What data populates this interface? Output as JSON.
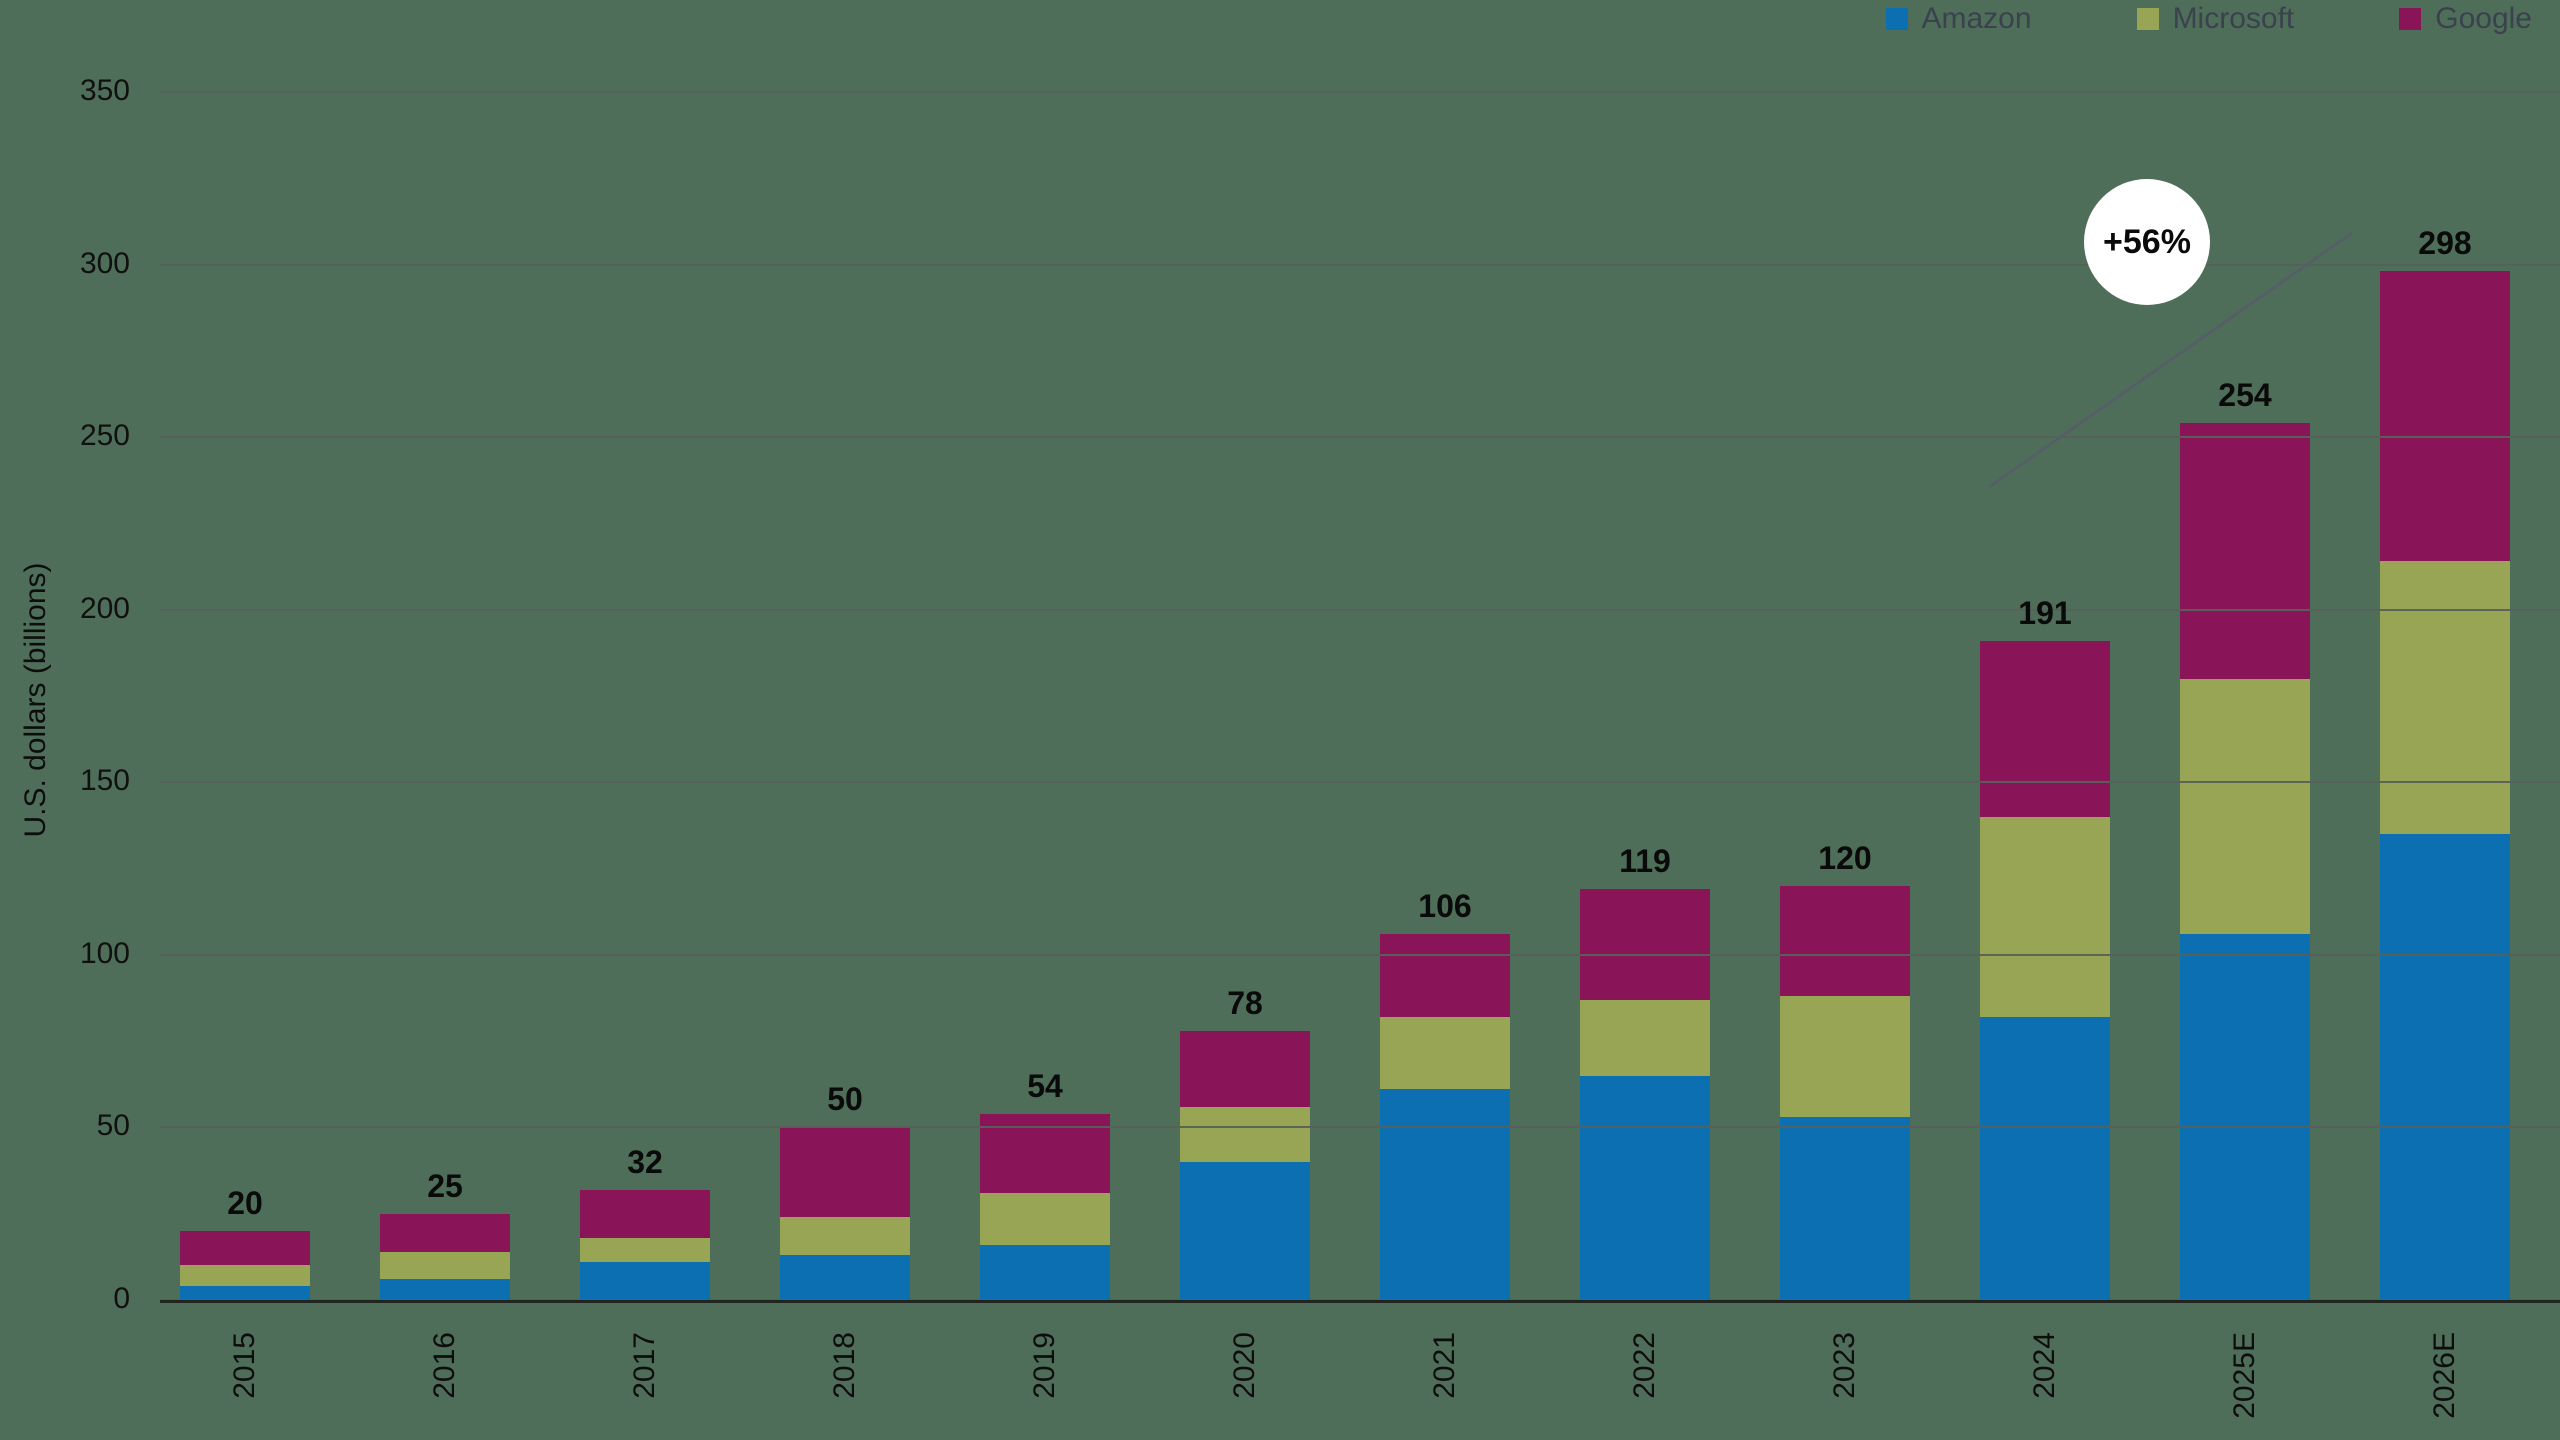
{
  "page": {
    "background_color": "#4f6e59"
  },
  "chart_data": {
    "type": "bar",
    "stacked": true,
    "ylabel": "U.S. dollars (billions)",
    "ylim": [
      0,
      350
    ],
    "yticks": [
      0,
      50,
      100,
      150,
      200,
      250,
      300,
      350
    ],
    "grid": true,
    "legend_position": "top-right",
    "categories": [
      "2015",
      "2016",
      "2017",
      "2018",
      "2019",
      "2020",
      "2021",
      "2022",
      "2023",
      "2024",
      "2025E",
      "2026E"
    ],
    "series": [
      {
        "name": "Amazon",
        "color": "#0c6fb2",
        "values": [
          4,
          6,
          11,
          13,
          16,
          40,
          61,
          65,
          53,
          82,
          106,
          135
        ]
      },
      {
        "name": "Microsoft",
        "color": "#98a554",
        "values": [
          6,
          8,
          7,
          11,
          15,
          16,
          21,
          22,
          35,
          58,
          74,
          79
        ]
      },
      {
        "name": "Google",
        "color": "#891457",
        "values": [
          10,
          11,
          14,
          26,
          23,
          22,
          24,
          32,
          32,
          51,
          74,
          84
        ]
      }
    ],
    "totals": [
      20,
      25,
      32,
      50,
      54,
      78,
      106,
      119,
      120,
      191,
      254,
      298
    ],
    "annotation": {
      "label": "+56%"
    }
  }
}
